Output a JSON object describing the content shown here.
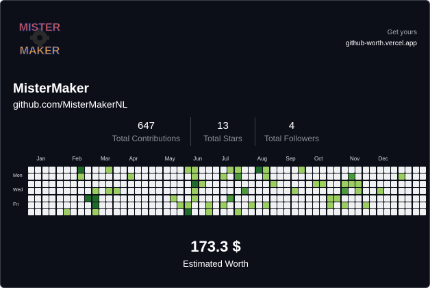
{
  "card": {
    "background": "#0c0e18",
    "border": "#3b3f4a"
  },
  "logo": {
    "line1": "MISTER",
    "line2": "MAKER",
    "icon": "gear-icon"
  },
  "promo": {
    "top": "Get yours",
    "url": "github-worth.vercel.app"
  },
  "profile": {
    "name": "MisterMaker",
    "url": "github.com/MisterMakerNL"
  },
  "stats": [
    {
      "value": "647",
      "label": "Total Contributions"
    },
    {
      "value": "13",
      "label": "Total Stars"
    },
    {
      "value": "4",
      "label": "Total Followers"
    }
  ],
  "calendar": {
    "months": [
      "Jan",
      "Feb",
      "Mar",
      "Apr",
      "May",
      "Jun",
      "Jul",
      "Aug",
      "Sep",
      "Oct",
      "Nov",
      "Dec"
    ],
    "month_week_index": [
      1,
      6,
      10,
      14,
      19,
      23,
      27,
      32,
      36,
      40,
      45,
      49
    ],
    "days": [
      "Mon",
      "Wed",
      "Fri"
    ],
    "day_row_index": [
      1,
      3,
      5
    ],
    "palette": [
      "#f0f1f3",
      "#d3f0a8",
      "#9ccd61",
      "#4b9b3c",
      "#1f6b2a"
    ],
    "weeks": [
      [
        0,
        0,
        0,
        0,
        0,
        0,
        0
      ],
      [
        0,
        0,
        0,
        0,
        0,
        0,
        0
      ],
      [
        0,
        0,
        0,
        0,
        0,
        0,
        0
      ],
      [
        0,
        0,
        0,
        0,
        0,
        0,
        0
      ],
      [
        0,
        0,
        0,
        0,
        0,
        0,
        0
      ],
      [
        0,
        0,
        0,
        0,
        0,
        0,
        2
      ],
      [
        0,
        0,
        0,
        0,
        0,
        0,
        0
      ],
      [
        4,
        2,
        0,
        0,
        0,
        0,
        0
      ],
      [
        0,
        0,
        0,
        0,
        4,
        0,
        0
      ],
      [
        0,
        0,
        0,
        2,
        4,
        4,
        2
      ],
      [
        0,
        0,
        0,
        0,
        0,
        0,
        0
      ],
      [
        2,
        0,
        0,
        2,
        0,
        0,
        0
      ],
      [
        0,
        0,
        0,
        2,
        0,
        0,
        0
      ],
      [
        0,
        0,
        0,
        0,
        0,
        0,
        0
      ],
      [
        0,
        2,
        0,
        0,
        0,
        0,
        0
      ],
      [
        0,
        0,
        0,
        0,
        0,
        0,
        0
      ],
      [
        0,
        0,
        0,
        0,
        0,
        0,
        0
      ],
      [
        0,
        0,
        0,
        0,
        0,
        0,
        0
      ],
      [
        0,
        0,
        0,
        0,
        0,
        0,
        0
      ],
      [
        0,
        0,
        0,
        0,
        0,
        0,
        0
      ],
      [
        0,
        0,
        0,
        0,
        2,
        0,
        0
      ],
      [
        0,
        0,
        0,
        0,
        0,
        2,
        0
      ],
      [
        2,
        0,
        0,
        0,
        0,
        2,
        4
      ],
      [
        2,
        2,
        4,
        2,
        2,
        0,
        0
      ],
      [
        0,
        0,
        2,
        0,
        0,
        0,
        0
      ],
      [
        0,
        0,
        0,
        0,
        0,
        2,
        2
      ],
      [
        0,
        0,
        0,
        0,
        0,
        0,
        0
      ],
      [
        0,
        2,
        0,
        0,
        0,
        2,
        0
      ],
      [
        2,
        0,
        0,
        0,
        3,
        0,
        0
      ],
      [
        2,
        3,
        0,
        0,
        0,
        0,
        2
      ],
      [
        0,
        0,
        0,
        3,
        0,
        0,
        0
      ],
      [
        0,
        0,
        0,
        0,
        0,
        2,
        0
      ],
      [
        4,
        0,
        0,
        0,
        0,
        0,
        0
      ],
      [
        2,
        2,
        0,
        0,
        0,
        2,
        0
      ],
      [
        0,
        0,
        2,
        0,
        0,
        0,
        0
      ],
      [
        0,
        0,
        0,
        0,
        0,
        0,
        0
      ],
      [
        0,
        0,
        0,
        0,
        0,
        0,
        0
      ],
      [
        0,
        0,
        0,
        2,
        0,
        0,
        0
      ],
      [
        2,
        0,
        0,
        0,
        0,
        0,
        0
      ],
      [
        0,
        0,
        0,
        0,
        0,
        0,
        0
      ],
      [
        0,
        0,
        2,
        0,
        0,
        0,
        0
      ],
      [
        0,
        0,
        2,
        0,
        0,
        0,
        0
      ],
      [
        0,
        0,
        0,
        0,
        2,
        2,
        0
      ],
      [
        0,
        0,
        0,
        0,
        2,
        0,
        0
      ],
      [
        0,
        0,
        2,
        3,
        0,
        2,
        0
      ],
      [
        0,
        3,
        2,
        0,
        0,
        0,
        0
      ],
      [
        0,
        0,
        2,
        2,
        0,
        0,
        0
      ],
      [
        0,
        0,
        0,
        0,
        0,
        2,
        0
      ],
      [
        0,
        0,
        0,
        0,
        0,
        0,
        0
      ],
      [
        0,
        0,
        0,
        2,
        0,
        0,
        0
      ],
      [
        0,
        0,
        0,
        0,
        0,
        0,
        0
      ],
      [
        0,
        0,
        0,
        0,
        0,
        0,
        0
      ],
      [
        0,
        2,
        0,
        0,
        0,
        0,
        0
      ],
      [
        0,
        0,
        0,
        0,
        0,
        0,
        0
      ],
      [
        0,
        0,
        0,
        0,
        0,
        0,
        0
      ],
      [
        0,
        0,
        0,
        0,
        0,
        0,
        0
      ]
    ]
  },
  "worth": {
    "value": "173.3 $",
    "label": "Estimated Worth"
  }
}
